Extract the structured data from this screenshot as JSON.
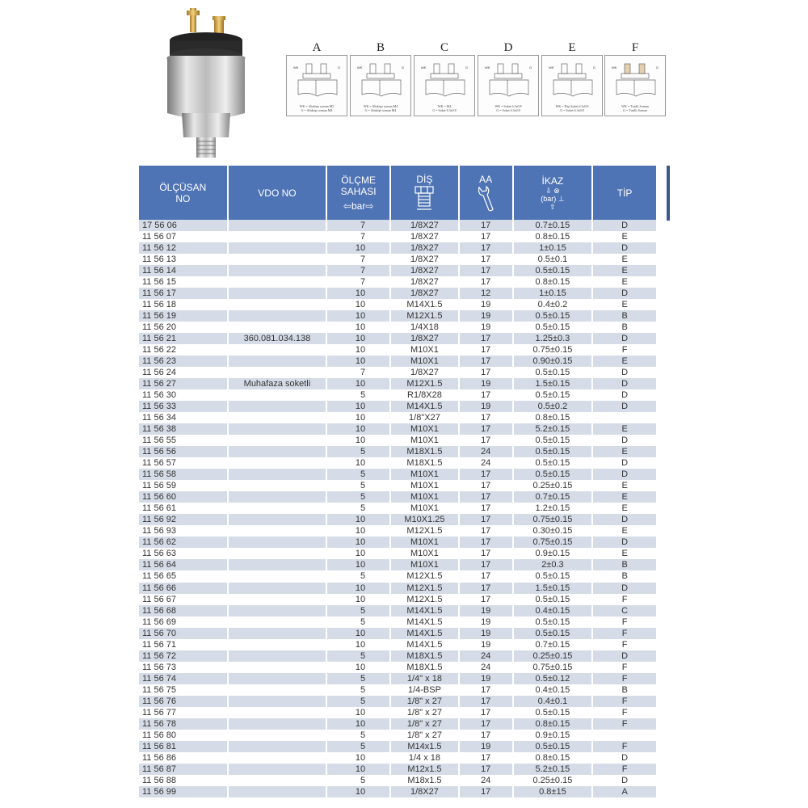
{
  "type_diagrams": [
    {
      "letter": "A",
      "wk": "WK",
      "g": "G",
      "note": "WK = Altıköşe somun M5\nG = Altıköşe somun M4"
    },
    {
      "letter": "B",
      "wk": "WK",
      "g": "G",
      "note": "WK = Altıköşe somun M4\nG = Altıköşe somun M4"
    },
    {
      "letter": "C",
      "wk": "WK",
      "g": "G",
      "note": "WK = M4\nG = Soket 6.3x0.8"
    },
    {
      "letter": "D",
      "wk": "WK",
      "g": "G",
      "note": "WK = Soket 6.3x0.8\nG = Soket 6.3x0.8"
    },
    {
      "letter": "E",
      "wk": "WK",
      "g": "G",
      "note": "WK = Dişi Soket 6.3x0.8\nG = Soket 6.3x0.8"
    },
    {
      "letter": "F",
      "wk": "WK",
      "g": "G",
      "note": "WK = Tırtıllı Somun\nG = Tırtıllı Somun"
    }
  ],
  "header": {
    "col0": "ÖLÇÜSAN\nNO",
    "col1": "VDO NO",
    "col2": "ÖLÇME\nSAHASI",
    "col2_unit": "bar",
    "col3": "DİŞ",
    "col4": "AA",
    "col5": "İKAZ",
    "col5_unit": "bar",
    "col6": "TİP"
  },
  "colors": {
    "header_bg": "#4f74b5",
    "row_shade": "#d6dce7"
  },
  "rows": [
    [
      "17 56 06",
      "",
      "7",
      "1/8X27",
      "17",
      "0.7±0.15",
      "D"
    ],
    [
      "11 56 07",
      "",
      "7",
      "1/8X27",
      "17",
      "0.8±0.15",
      "E"
    ],
    [
      "11 56 12",
      "",
      "10",
      "1/8X27",
      "17",
      "1±0.15",
      "D"
    ],
    [
      "11 56 13",
      "",
      "7",
      "1/8X27",
      "17",
      "0.5±0.1",
      "E"
    ],
    [
      "11 56 14",
      "",
      "7",
      "1/8X27",
      "17",
      "0.5±0.15",
      "E"
    ],
    [
      "11 56 15",
      "",
      "7",
      "1/8X27",
      "17",
      "0.8±0.15",
      "E"
    ],
    [
      "11 56 17",
      "",
      "10",
      "1/8X27",
      "12",
      "1±0.15",
      "D"
    ],
    [
      "11 56 18",
      "",
      "10",
      "M14X1.5",
      "19",
      "0.4±0.2",
      "E"
    ],
    [
      "11 56 19",
      "",
      "10",
      "M12X1.5",
      "19",
      "0.5±0.15",
      "B"
    ],
    [
      "11 56 20",
      "",
      "10",
      "1/4X18",
      "19",
      "0.5±0.15",
      "B"
    ],
    [
      "11 56 21",
      "360.081.034.138",
      "10",
      "1/8X27",
      "17",
      "1.25±0.3",
      "D"
    ],
    [
      "11 56 22",
      "",
      "10",
      "M10X1",
      "17",
      "0.75±0.15",
      "F"
    ],
    [
      "11 56 23",
      "",
      "10",
      "M10X1",
      "17",
      "0.90±0.15",
      "E"
    ],
    [
      "11 56 24",
      "",
      "7",
      "1/8X27",
      "17",
      "0.5±0.15",
      "D"
    ],
    [
      "11 56 27",
      "Muhafaza soketli",
      "10",
      "M12X1.5",
      "19",
      "1.5±0.15",
      "D"
    ],
    [
      "11 56 30",
      "",
      "5",
      "R1/8X28",
      "17",
      "0.5±0.15",
      "D"
    ],
    [
      "11 56 33",
      "",
      "10",
      "M14X1.5",
      "19",
      "0.5±0.2",
      "D"
    ],
    [
      "11 56 34",
      "",
      "10",
      "1/8\"X27",
      "17",
      "0.8±0.15",
      ""
    ],
    [
      "11 56 38",
      "",
      "10",
      "M10X1",
      "17",
      "5.2±0.15",
      "E"
    ],
    [
      "11 56 55",
      "",
      "10",
      "M10X1",
      "17",
      "0.5±0.15",
      "D"
    ],
    [
      "11 56 56",
      "",
      "5",
      "M18X1.5",
      "24",
      "0.5±0.15",
      "E"
    ],
    [
      "11 56 57",
      "",
      "10",
      "M18X1.5",
      "24",
      "0.5±0.15",
      "D"
    ],
    [
      "11 56 58",
      "",
      "5",
      "M10X1",
      "17",
      "0.5±0.15",
      "D"
    ],
    [
      "11 56 59",
      "",
      "5",
      "M10X1",
      "17",
      "0.25±0.15",
      "E"
    ],
    [
      "11 56 60",
      "",
      "5",
      "M10X1",
      "17",
      "0.7±0.15",
      "E"
    ],
    [
      "11 56 61",
      "",
      "5",
      "M10X1",
      "17",
      "1.2±0.15",
      "E"
    ],
    [
      "11 56 92",
      "",
      "10",
      "M10X1.25",
      "17",
      "0.75±0.15",
      "D"
    ],
    [
      "11 56 93",
      "",
      "10",
      "M12X1.5",
      "17",
      "0.30±0.15",
      "E"
    ],
    [
      "11 56 62",
      "",
      "10",
      "M10X1",
      "17",
      "0.75±0.15",
      "D"
    ],
    [
      "11 56 63",
      "",
      "10",
      "M10X1",
      "17",
      "0.9±0.15",
      "E"
    ],
    [
      "11 56 64",
      "",
      "10",
      "M10X1",
      "17",
      "2±0.3",
      "B"
    ],
    [
      "11 56 65",
      "",
      "5",
      "M12X1.5",
      "17",
      "0.5±0.15",
      "B"
    ],
    [
      "11 56 66",
      "",
      "10",
      "M12X1.5",
      "17",
      "1.5±0.15",
      "D"
    ],
    [
      "11 56 67",
      "",
      "10",
      "M12X1.5",
      "17",
      "0.5±0.15",
      "F"
    ],
    [
      "11 56 68",
      "",
      "5",
      "M14X1.5",
      "19",
      "0.4±0.15",
      "C"
    ],
    [
      "11 56 69",
      "",
      "5",
      "M14X1.5",
      "19",
      "0.5±0.15",
      "F"
    ],
    [
      "11 56 70",
      "",
      "10",
      "M14X1.5",
      "19",
      "0.5±0.15",
      "F"
    ],
    [
      "11 56 71",
      "",
      "10",
      "M14X1.5",
      "19",
      "0.7±0.15",
      "F"
    ],
    [
      "11 56 72",
      "",
      "5",
      "M18X1.5",
      "24",
      "0.25±0.15",
      "D"
    ],
    [
      "11 56 73",
      "",
      "10",
      "M18X1.5",
      "24",
      "0.75±0.15",
      "F"
    ],
    [
      "11 56 74",
      "",
      "5",
      "1/4\" x 18",
      "19",
      "0.5±0.12",
      "F"
    ],
    [
      "11 56 75",
      "",
      "5",
      "1/4-BSP",
      "17",
      "0.4±0.15",
      "B"
    ],
    [
      "11 56 76",
      "",
      "5",
      "1/8\" x 27",
      "17",
      "0.4±0.1",
      "F"
    ],
    [
      "11 56 77",
      "",
      "10",
      "1/8\" x 27",
      "17",
      "0.5±0.15",
      "F"
    ],
    [
      "11 56 78",
      "",
      "10",
      "1/8\" x 27",
      "17",
      "0.8±0.15",
      "F"
    ],
    [
      "11 56 80",
      "",
      "5",
      "1/8\" x 27",
      "17",
      "0.9±0.15",
      ""
    ],
    [
      "11 56 81",
      "",
      "5",
      "M14x1.5",
      "19",
      "0.5±0.15",
      "F"
    ],
    [
      "11 56 86",
      "",
      "10",
      "1/4 x 18",
      "17",
      "0.8±0.15",
      "D"
    ],
    [
      "11 56 87",
      "",
      "10",
      "M12x1.5",
      "17",
      "5.2±0.15",
      "F"
    ],
    [
      "11 56 88",
      "",
      "5",
      "M18x1.5",
      "24",
      "0.25±0.15",
      "D"
    ],
    [
      "11 56 99",
      "",
      "10",
      "1/8X27",
      "17",
      "0.8±15",
      "A"
    ]
  ]
}
